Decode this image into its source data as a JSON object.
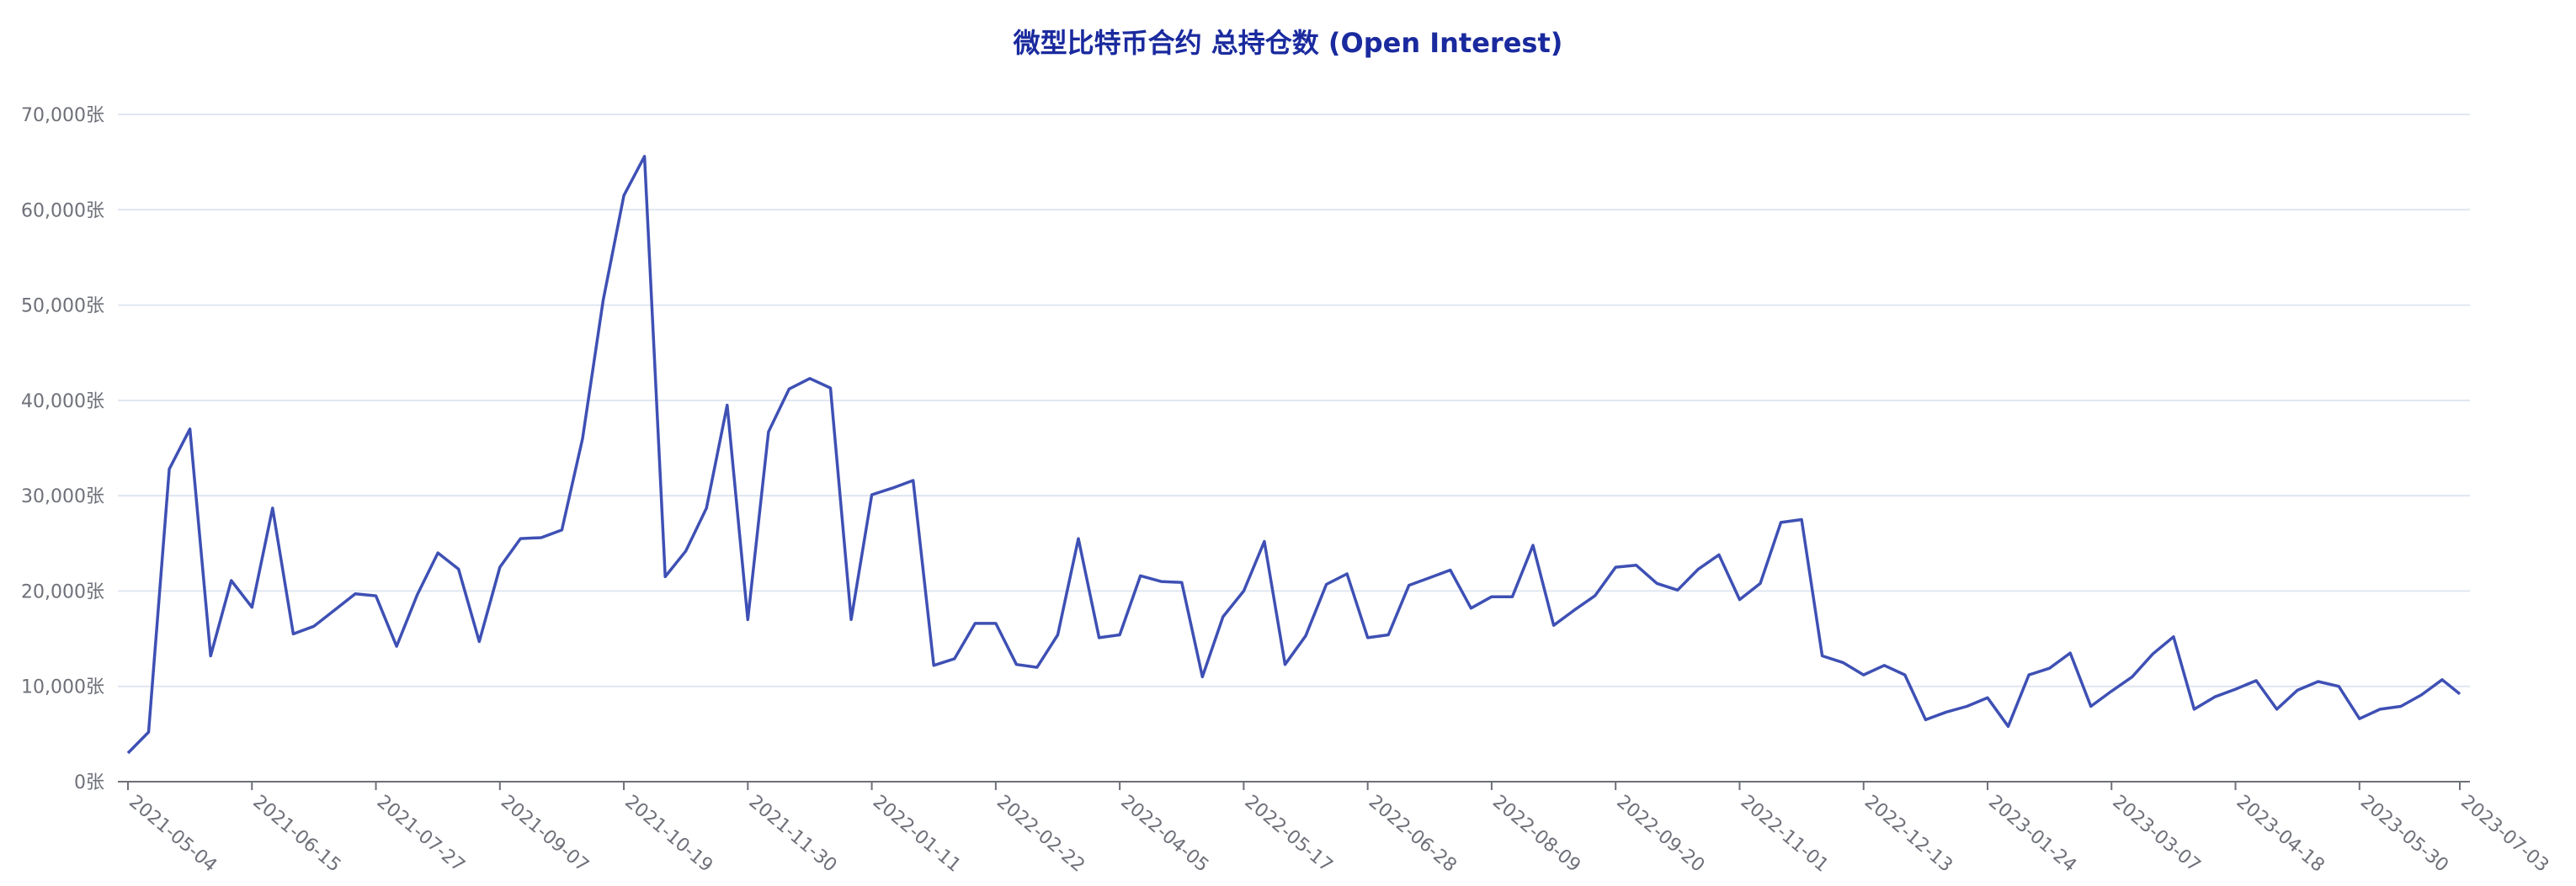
{
  "chart_data": {
    "type": "line",
    "title": "微型比特币合约 总持仓数 (Open Interest)",
    "xlabel": "",
    "ylabel": "",
    "ylim": [
      0,
      70000
    ],
    "y_ticks": [
      "0张",
      "10,000张",
      "20,000张",
      "30,000张",
      "40,000张",
      "50,000张",
      "60,000张",
      "70,000张"
    ],
    "x_ticks": [
      "2021-05-04",
      "2021-06-15",
      "2021-07-27",
      "2021-09-07",
      "2021-10-19",
      "2021-11-30",
      "2022-01-11",
      "2022-02-22",
      "2022-04-05",
      "2022-05-17",
      "2022-06-28",
      "2022-08-09",
      "2022-09-20",
      "2022-11-01",
      "2022-12-13",
      "2023-01-24",
      "2023-03-07",
      "2023-04-18",
      "2023-05-30",
      "2023-07-03"
    ],
    "grid": true,
    "legend": "none",
    "line_color": "#3e50b4",
    "series": [
      {
        "x": [
          "2021-05-04",
          "2021-05-11",
          "2021-05-18",
          "2021-05-25",
          "2021-06-01",
          "2021-06-08",
          "2021-06-15",
          "2021-06-22",
          "2021-06-29",
          "2021-07-06",
          "2021-07-13",
          "2021-07-20",
          "2021-07-27",
          "2021-08-03",
          "2021-08-10",
          "2021-08-17",
          "2021-08-24",
          "2021-08-31",
          "2021-09-07",
          "2021-09-14",
          "2021-09-21",
          "2021-09-28",
          "2021-10-05",
          "2021-10-12",
          "2021-10-19",
          "2021-10-26",
          "2021-11-02",
          "2021-11-09",
          "2021-11-16",
          "2021-11-23",
          "2021-11-30",
          "2021-12-07",
          "2021-12-14",
          "2021-12-21",
          "2021-12-28",
          "2022-01-04",
          "2022-01-11",
          "2022-01-18",
          "2022-01-25",
          "2022-02-01",
          "2022-02-08",
          "2022-02-15",
          "2022-02-22",
          "2022-03-01",
          "2022-03-08",
          "2022-03-15",
          "2022-03-22",
          "2022-03-29",
          "2022-04-05",
          "2022-04-12",
          "2022-04-19",
          "2022-04-26",
          "2022-05-03",
          "2022-05-10",
          "2022-05-17",
          "2022-05-24",
          "2022-05-31",
          "2022-06-07",
          "2022-06-14",
          "2022-06-21",
          "2022-06-28",
          "2022-07-05",
          "2022-07-12",
          "2022-07-19",
          "2022-07-26",
          "2022-08-02",
          "2022-08-09",
          "2022-08-16",
          "2022-08-23",
          "2022-08-30",
          "2022-09-06",
          "2022-09-13",
          "2022-09-20",
          "2022-09-27",
          "2022-10-04",
          "2022-10-11",
          "2022-10-18",
          "2022-10-25",
          "2022-11-01",
          "2022-11-08",
          "2022-11-15",
          "2022-11-22",
          "2022-11-29",
          "2022-12-06",
          "2022-12-13",
          "2022-12-20",
          "2022-12-27",
          "2023-01-03",
          "2023-01-10",
          "2023-01-17",
          "2023-01-24",
          "2023-01-31",
          "2023-02-07",
          "2023-02-14",
          "2023-02-21",
          "2023-02-28",
          "2023-03-07",
          "2023-03-14",
          "2023-03-21",
          "2023-03-28",
          "2023-04-04",
          "2023-04-11",
          "2023-04-18",
          "2023-04-25",
          "2023-05-02",
          "2023-05-09",
          "2023-05-16",
          "2023-05-23",
          "2023-05-30",
          "2023-06-06",
          "2023-06-13",
          "2023-06-20",
          "2023-06-27",
          "2023-07-03"
        ],
        "values": [
          3000,
          5200,
          32800,
          37000,
          13200,
          21100,
          18300,
          28700,
          15500,
          16300,
          18000,
          19700,
          19500,
          14200,
          19600,
          24000,
          22300,
          14700,
          22500,
          25500,
          25600,
          26400,
          36000,
          50500,
          61500,
          65600,
          21500,
          24200,
          28700,
          39500,
          17000,
          36700,
          41200,
          42300,
          41300,
          17000,
          30100,
          30800,
          31600,
          12200,
          12900,
          16600,
          16600,
          12300,
          12000,
          15400,
          25500,
          15100,
          15400,
          21600,
          21000,
          20900,
          11000,
          17300,
          20000,
          25200,
          12300,
          15300,
          20700,
          21800,
          15100,
          15400,
          20600,
          21400,
          22200,
          18200,
          19400,
          19400,
          24800,
          16400,
          18000,
          19500,
          22500,
          22700,
          20800,
          20100,
          22300,
          23800,
          19100,
          20800,
          27200,
          27500,
          13200,
          12500,
          11200,
          12200,
          11200,
          6500,
          7300,
          7900,
          8800,
          5800,
          11200,
          11900,
          13500,
          7900,
          9500,
          11000,
          13400,
          15200,
          7600,
          8900,
          9700,
          10600,
          7600,
          9600,
          10500,
          10000,
          6600,
          7600,
          7900,
          9100,
          10700,
          9200
        ]
      }
    ]
  }
}
